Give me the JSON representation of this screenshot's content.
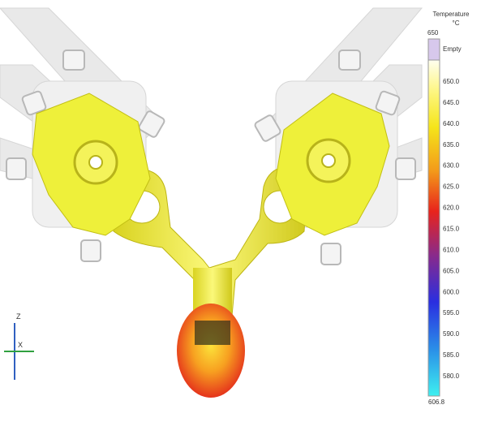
{
  "legend": {
    "title": "Temperature",
    "unit": "°C",
    "top_label": "650",
    "empty_label": "Empty",
    "ticks": [
      "650.0",
      "645.0",
      "640.0",
      "635.0",
      "630.0",
      "625.0",
      "620.0",
      "615.0",
      "610.0",
      "605.0",
      "600.0",
      "595.0",
      "590.0",
      "585.0",
      "580.0"
    ],
    "bottom_label": "606.8"
  },
  "axes": {
    "z": "Z",
    "x": "X"
  }
}
